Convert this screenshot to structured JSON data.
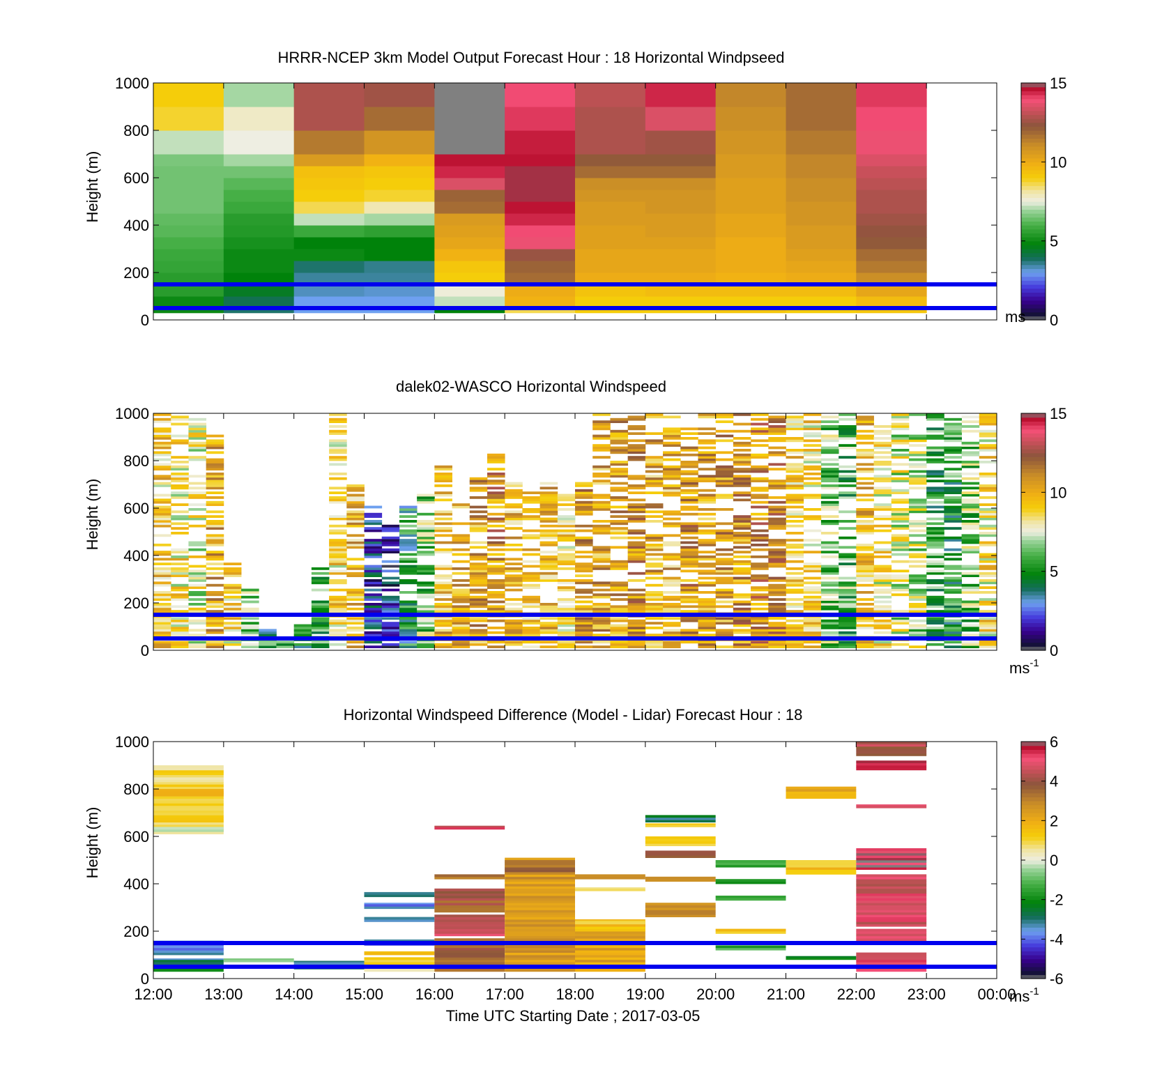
{
  "figure": {
    "xlabel": "Time UTC  Starting Date ; 2017-03-05",
    "xticks": [
      "12:00",
      "13:00",
      "14:00",
      "15:00",
      "16:00",
      "17:00",
      "18:00",
      "19:00",
      "20:00",
      "21:00",
      "22:00",
      "23:00",
      "00:00"
    ],
    "reference_lines_m": [
      50,
      150
    ],
    "reference_line_color": "#0000ee"
  },
  "chart_data": [
    {
      "type": "heatmap",
      "title": "HRRR-NCEP 3km Model Output   Forecast Hour : 18 Horizontal Windpseed",
      "ylabel": "Height (m)",
      "ylim": [
        0,
        1000
      ],
      "yticks": [
        "0",
        "200",
        "400",
        "600",
        "800",
        "1000"
      ],
      "colorbar": {
        "min": 0,
        "max": 15,
        "ticks": [
          "0",
          "5",
          "10",
          "15"
        ],
        "unit": "ms"
      },
      "x_hours": [
        12,
        13,
        14,
        15,
        16,
        17,
        18,
        19,
        20,
        21,
        22
      ],
      "y_bin_top_m": [
        50,
        100,
        150,
        200,
        250,
        300,
        350,
        400,
        450,
        500,
        550,
        600,
        650,
        700,
        800,
        900,
        1000
      ],
      "values": [
        [
          5.0,
          3.8,
          3.0,
          3.0,
          4.8,
          8.6,
          9.0,
          9.0,
          9.2,
          9.0,
          9.2
        ],
        [
          5.0,
          4.0,
          3.0,
          3.0,
          7.2,
          9.8,
          9.0,
          9.0,
          9.0,
          9.0,
          9.5
        ],
        [
          5.5,
          4.5,
          3.3,
          3.2,
          7.6,
          10.0,
          9.3,
          9.5,
          9.5,
          9.5,
          10.2
        ],
        [
          5.5,
          4.8,
          3.5,
          3.5,
          9.0,
          11.8,
          10.0,
          10.0,
          9.8,
          10.0,
          11.0
        ],
        [
          5.7,
          5.0,
          3.8,
          3.6,
          9.2,
          12.0,
          10.2,
          10.2,
          10.0,
          10.2,
          11.5
        ],
        [
          5.8,
          5.0,
          5.0,
          4.8,
          9.8,
          12.5,
          10.2,
          10.2,
          10.0,
          10.4,
          11.8
        ],
        [
          6.0,
          5.2,
          4.8,
          4.8,
          10.2,
          13.8,
          10.4,
          10.4,
          10.0,
          10.6,
          12.2
        ],
        [
          6.2,
          5.4,
          5.8,
          5.6,
          10.4,
          14.0,
          10.4,
          10.6,
          10.2,
          10.6,
          12.4
        ],
        [
          6.3,
          5.5,
          7.2,
          7.0,
          10.6,
          14.4,
          10.6,
          10.6,
          10.2,
          10.8,
          12.6
        ],
        [
          6.5,
          5.8,
          8.6,
          8.0,
          11.8,
          14.6,
          10.6,
          10.8,
          10.4,
          10.8,
          12.8
        ],
        [
          6.5,
          6.0,
          9.0,
          8.8,
          12.0,
          14.8,
          10.8,
          10.8,
          10.4,
          11.0,
          12.8
        ],
        [
          6.5,
          6.2,
          9.2,
          9.0,
          13.5,
          14.8,
          11.0,
          11.0,
          10.4,
          11.0,
          13.0
        ],
        [
          6.5,
          6.5,
          9.4,
          9.2,
          14.4,
          14.8,
          11.8,
          11.8,
          10.6,
          11.2,
          13.2
        ],
        [
          6.6,
          7.0,
          10.6,
          9.8,
          14.6,
          14.6,
          12.2,
          12.2,
          10.6,
          11.2,
          13.5
        ],
        [
          7.2,
          7.5,
          11.5,
          10.8,
          15.5,
          14.5,
          12.8,
          12.6,
          10.8,
          11.5,
          13.8
        ],
        [
          8.8,
          7.8,
          12.8,
          11.8,
          15.5,
          14.2,
          12.8,
          13.5,
          11.0,
          11.8,
          14.0
        ],
        [
          9.0,
          7.0,
          12.8,
          12.6,
          15.5,
          14.0,
          13.0,
          14.4,
          11.2,
          11.8,
          14.2
        ]
      ]
    },
    {
      "type": "heatmap",
      "title": "dalek02-WASCO  Horizontal Windspeed",
      "ylabel": "Height (m)",
      "ylim": [
        0,
        1000
      ],
      "yticks": [
        "0",
        "200",
        "400",
        "600",
        "800",
        "1000"
      ],
      "colorbar": {
        "min": 0,
        "max": 15,
        "ticks": [
          "0",
          "5",
          "10",
          "15"
        ],
        "unit": "ms",
        "unit_exp": "-1"
      },
      "column_hours": 0.25,
      "rows_per_column": 100,
      "coverage_top_m": [
        1000,
        1000,
        1000,
        900,
        380,
        250,
        80,
        60,
        100,
        380,
        1000,
        700,
        600,
        520,
        600,
        650,
        800,
        620,
        720,
        830,
        700,
        700,
        700,
        650,
        700,
        1000,
        1000,
        1000,
        1000,
        1000,
        1000,
        1000,
        1000,
        1000,
        1000,
        1000,
        1000,
        1000,
        1000,
        1000,
        1000,
        1000,
        1000,
        1000,
        1000,
        1000,
        1000,
        1000
      ],
      "column_levels": [
        9.0,
        8.5,
        7.8,
        10.0,
        8.8,
        6.5,
        5.0,
        5.5,
        4.5,
        5.5,
        8.8,
        9.6,
        2.5,
        2.0,
        4.8,
        6.5,
        9.6,
        9.8,
        10.2,
        10.8,
        9.4,
        9.2,
        9.6,
        8.8,
        10.4,
        10.2,
        10.2,
        10.6,
        10.0,
        9.8,
        10.6,
        10.2,
        10.4,
        10.6,
        11.0,
        10.8,
        9.0,
        8.8,
        6.5,
        6.0,
        9.4,
        8.4,
        7.6,
        7.2,
        5.6,
        5.2,
        6.5,
        8.5
      ]
    },
    {
      "type": "heatmap",
      "title": "Horizontal Windspeed Difference (Model - Lidar) Forecast Hour : 18",
      "ylabel": "Height (m)",
      "ylim": [
        0,
        1000
      ],
      "yticks": [
        "0",
        "200",
        "400",
        "600",
        "800",
        "1000"
      ],
      "colorbar": {
        "min": -6,
        "max": 6,
        "ticks": [
          "-6",
          "-4",
          "-2",
          "0",
          "2",
          "4",
          "6"
        ],
        "unit": "ms",
        "unit_exp": "-1"
      },
      "bands": [
        {
          "h": 12,
          "y0": 610,
          "y1": 900,
          "v": 1.0
        },
        {
          "h": 12,
          "y0": 770,
          "y1": 800,
          "v": 1.6
        },
        {
          "h": 12,
          "y0": 620,
          "y1": 640,
          "v": -0.5
        },
        {
          "h": 12,
          "y0": 100,
          "y1": 160,
          "v": -3.5
        },
        {
          "h": 12,
          "y0": 60,
          "y1": 85,
          "v": -3.0
        },
        {
          "h": 12,
          "y0": 30,
          "y1": 50,
          "v": -2.5
        },
        {
          "h": 13,
          "y0": 70,
          "y1": 85,
          "v": -1.0
        },
        {
          "h": 14,
          "y0": 40,
          "y1": 75,
          "v": -3.3
        },
        {
          "h": 15,
          "y0": 345,
          "y1": 365,
          "v": -3.5
        },
        {
          "h": 15,
          "y0": 295,
          "y1": 320,
          "v": -3.6
        },
        {
          "h": 15,
          "y0": 240,
          "y1": 260,
          "v": -3.6
        },
        {
          "h": 15,
          "y0": 140,
          "y1": 165,
          "v": -3.8
        },
        {
          "h": 15,
          "y0": 100,
          "y1": 115,
          "v": 1.2
        },
        {
          "h": 15,
          "y0": 30,
          "y1": 90,
          "v": 0.8
        },
        {
          "h": 16,
          "y0": 630,
          "y1": 645,
          "v": 5.0
        },
        {
          "h": 16,
          "y0": 420,
          "y1": 440,
          "v": 3.4
        },
        {
          "h": 16,
          "y0": 280,
          "y1": 380,
          "v": 3.8
        },
        {
          "h": 16,
          "y0": 180,
          "y1": 270,
          "v": 4.5
        },
        {
          "h": 16,
          "y0": 30,
          "y1": 170,
          "v": 3.6
        },
        {
          "h": 17,
          "y0": 30,
          "y1": 510,
          "v": 2.5
        },
        {
          "h": 17,
          "y0": 440,
          "y1": 500,
          "v": 3.4
        },
        {
          "h": 18,
          "y0": 420,
          "y1": 440,
          "v": 3.0
        },
        {
          "h": 18,
          "y0": 370,
          "y1": 385,
          "v": 0.4
        },
        {
          "h": 18,
          "y0": 30,
          "y1": 250,
          "v": 2.2
        },
        {
          "h": 18,
          "y0": 200,
          "y1": 245,
          "v": 1.4
        },
        {
          "h": 19,
          "y0": 660,
          "y1": 690,
          "v": -2.8
        },
        {
          "h": 19,
          "y0": 640,
          "y1": 655,
          "v": 1.0
        },
        {
          "h": 19,
          "y0": 560,
          "y1": 600,
          "v": 1.4
        },
        {
          "h": 19,
          "y0": 510,
          "y1": 540,
          "v": 4.2
        },
        {
          "h": 19,
          "y0": 410,
          "y1": 430,
          "v": 3.0
        },
        {
          "h": 19,
          "y0": 260,
          "y1": 320,
          "v": 2.6
        },
        {
          "h": 20,
          "y0": 470,
          "y1": 500,
          "v": -1.2
        },
        {
          "h": 20,
          "y0": 400,
          "y1": 420,
          "v": -1.8
        },
        {
          "h": 20,
          "y0": 330,
          "y1": 350,
          "v": -1.5
        },
        {
          "h": 20,
          "y0": 190,
          "y1": 210,
          "v": 1.6
        },
        {
          "h": 20,
          "y0": 120,
          "y1": 140,
          "v": -1.5
        },
        {
          "h": 21,
          "y0": 760,
          "y1": 810,
          "v": 2.2
        },
        {
          "h": 21,
          "y0": 440,
          "y1": 500,
          "v": 1.4
        },
        {
          "h": 21,
          "y0": 80,
          "y1": 95,
          "v": -2.4
        },
        {
          "h": 22,
          "y0": 940,
          "y1": 1000,
          "v": 4.2
        },
        {
          "h": 22,
          "y0": 880,
          "y1": 920,
          "v": 5.5
        },
        {
          "h": 22,
          "y0": 720,
          "y1": 735,
          "v": 5.0
        },
        {
          "h": 22,
          "y0": 460,
          "y1": 550,
          "v": 5.5
        },
        {
          "h": 22,
          "y0": 220,
          "y1": 440,
          "v": 4.8
        },
        {
          "h": 22,
          "y0": 160,
          "y1": 210,
          "v": 4.5
        },
        {
          "h": 22,
          "y0": 30,
          "y1": 110,
          "v": 5.0
        }
      ]
    }
  ]
}
